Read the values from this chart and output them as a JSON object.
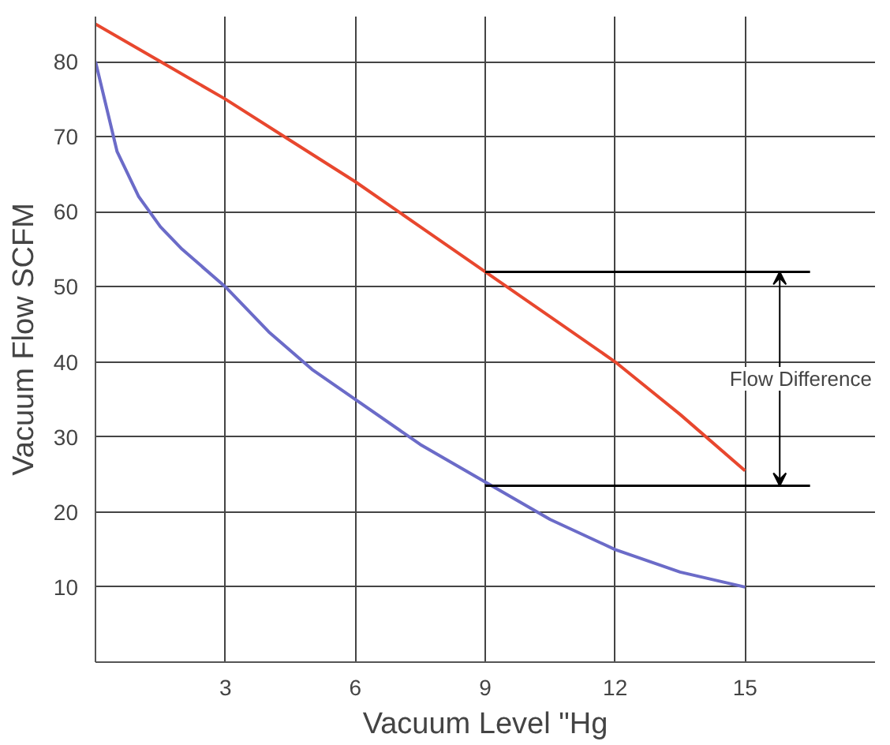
{
  "chart_data": {
    "type": "line",
    "xlabel": "Vacuum Level \"Hg",
    "ylabel": "Vacuum Flow SCFM",
    "xlim": [
      0,
      18
    ],
    "ylim": [
      0,
      86
    ],
    "xticks": [
      3,
      6,
      9,
      12,
      15
    ],
    "yticks": [
      10,
      20,
      30,
      40,
      50,
      60,
      70,
      80
    ],
    "grid": true,
    "line_style": "solid",
    "series": [
      {
        "color": "#e8472e",
        "x": [
          0,
          1.5,
          3,
          4.5,
          6,
          7.5,
          9,
          10.5,
          12,
          13.5,
          15
        ],
        "values": [
          85,
          80,
          75,
          69.5,
          64,
          58,
          52,
          46,
          40,
          33,
          25.5
        ]
      },
      {
        "color": "#6b6bc8",
        "x": [
          0,
          0.5,
          1,
          1.5,
          2,
          3,
          4,
          5,
          6,
          7.5,
          9,
          10.5,
          12,
          13.5,
          15
        ],
        "values": [
          80,
          68,
          62,
          58,
          55,
          50,
          44,
          39,
          35,
          29,
          24,
          19,
          15,
          12,
          10
        ]
      }
    ],
    "ref_lines": [
      {
        "axis": "y",
        "value": 52,
        "color": "#000000"
      },
      {
        "axis": "y",
        "value": 23.5,
        "color": "#000000"
      }
    ],
    "annotations": [
      {
        "text": "Flow Difference",
        "x": 15.8,
        "y": 52
      }
    ]
  }
}
